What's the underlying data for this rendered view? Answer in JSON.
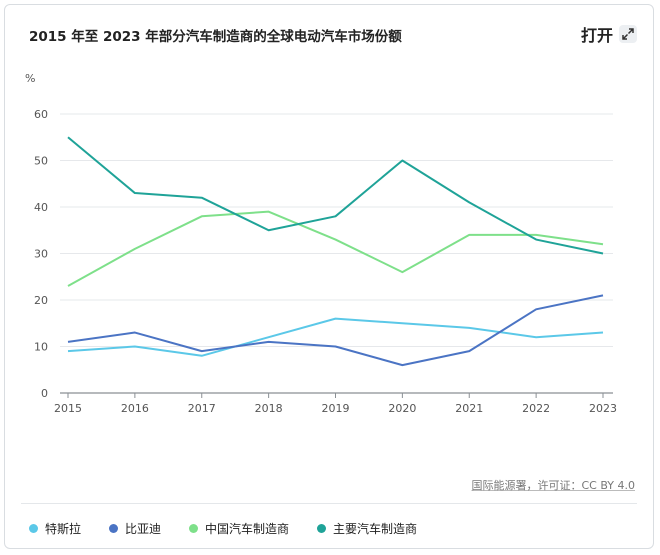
{
  "header": {
    "title": "2015 年至 2023 年部分汽车制造商的全球电动汽车市场份额",
    "open_label": "打开"
  },
  "icons": {
    "expand": "expand-arrows-icon"
  },
  "source_text": "国际能源署，许可证：CC BY 4.0",
  "colors": {
    "特斯拉": "#5bc8e8",
    "比亚迪": "#4b74c4",
    "中国汽车制造商": "#7ee08a",
    "主要汽车制造商": "#1fa398"
  },
  "chart_data": {
    "type": "line",
    "title": "2015 年至 2023 年部分汽车制造商的全球电动汽车市场份额",
    "ylabel": "%",
    "xlabel": "",
    "x": [
      "2015",
      "2016",
      "2017",
      "2018",
      "2019",
      "2020",
      "2021",
      "2022",
      "2023"
    ],
    "ylim": [
      0,
      60
    ],
    "yticks": [
      0,
      10,
      20,
      30,
      40,
      50,
      60
    ],
    "grid": true,
    "legend_position": "bottom",
    "series": [
      {
        "name": "特斯拉",
        "values": [
          9,
          10,
          8,
          12,
          16,
          15,
          14,
          12,
          13
        ]
      },
      {
        "name": "比亚迪",
        "values": [
          11,
          13,
          9,
          11,
          10,
          6,
          9,
          18,
          21
        ]
      },
      {
        "name": "中国汽车制造商",
        "values": [
          23,
          31,
          38,
          39,
          33,
          26,
          34,
          34,
          32
        ]
      },
      {
        "name": "主要汽车制造商",
        "values": [
          55,
          43,
          42,
          35,
          38,
          50,
          41,
          33,
          30
        ]
      }
    ]
  }
}
